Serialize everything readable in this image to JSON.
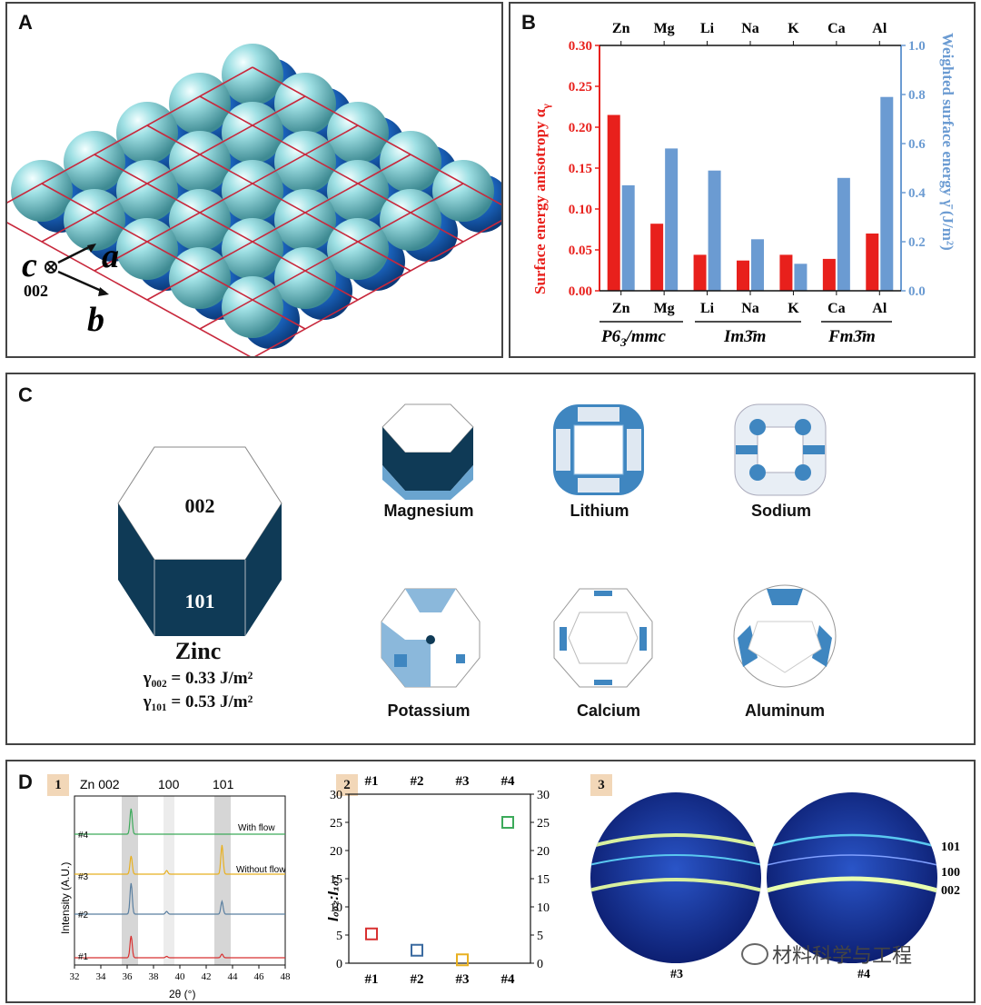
{
  "panels": {
    "a": "A",
    "b": "B",
    "c": "C",
    "d": "D",
    "d_sub": [
      "1",
      "2",
      "3"
    ]
  },
  "panel_a": {
    "axis_c": "c",
    "axis_a": "a",
    "axis_b": "b",
    "axis_c_note": "002"
  },
  "panel_b_chart": {
    "type": "bar",
    "categories": [
      "Zn",
      "Mg",
      "Li",
      "Na",
      "K",
      "Ca",
      "Al"
    ],
    "series": [
      {
        "name": "Surface energy anisotropy α_γ",
        "axis": "left",
        "color": "#e8201c",
        "values": [
          0.215,
          0.082,
          0.044,
          0.037,
          0.044,
          0.039,
          0.07
        ]
      },
      {
        "name": "Weighted surface energy γ̄ (J/m²)",
        "axis": "right",
        "color": "#6b9bd2",
        "values": [
          0.43,
          0.58,
          0.49,
          0.21,
          0.11,
          0.46,
          0.79
        ]
      }
    ],
    "ylim": [
      0,
      0.3
    ],
    "y2lim": [
      0,
      1.0
    ],
    "yticks": [
      "0.00",
      "0.05",
      "0.10",
      "0.15",
      "0.20",
      "0.25",
      "0.30"
    ],
    "y2ticks": [
      "0.0",
      "0.2",
      "0.4",
      "0.6",
      "0.8",
      "1.0"
    ],
    "ylabel": "Surface energy anisotropy α",
    "ylabel_sub": "γ",
    "y2label": "Weighted surface energy γ̄ (J/m²)",
    "groups": [
      {
        "label": "P6",
        "sub": "3",
        "rest": "/mmc"
      },
      {
        "label": "Im3̄m"
      },
      {
        "label": "Fm3̄m"
      }
    ]
  },
  "panel_c": {
    "zinc_face_top": "002",
    "zinc_face_side": "101",
    "zinc_name": "Zinc",
    "gamma_002": "γ₀₀₂ = 0.33 J/m²",
    "gamma_101": "γ₁₀₁ = 0.53 J/m²",
    "metals": [
      "Magnesium",
      "Lithium",
      "Sodium",
      "Potassium",
      "Calcium",
      "Aluminum"
    ]
  },
  "panel_d1": {
    "peaks_labels": [
      "Zn 002",
      "100",
      "101"
    ],
    "traces": [
      "#4",
      "#3",
      "#2",
      "#1"
    ],
    "trace_colors": [
      "#3caa5a",
      "#e8b020",
      "#5a7fa0",
      "#d83030"
    ],
    "notes": [
      "With flow",
      "Without flow"
    ],
    "ylabel": "Intensity (A.U.)",
    "xlabel": "2θ (°)",
    "xticks": [
      "32",
      "34",
      "36",
      "38",
      "40",
      "42",
      "44",
      "46",
      "48"
    ]
  },
  "chart_data": {
    "type": "scatter",
    "x": [
      "#1",
      "#2",
      "#3",
      "#4"
    ],
    "values": [
      5.2,
      2.3,
      0.6,
      25.0
    ],
    "colors": [
      "#d83030",
      "#3a6aa0",
      "#e8b020",
      "#3caa5a"
    ],
    "ylim": [
      0,
      30
    ],
    "yticks": [
      "0",
      "5",
      "10",
      "15",
      "20",
      "25",
      "30"
    ],
    "ylabel": "I₀₀₂:I₁₀₁"
  },
  "panel_d3": {
    "rings": [
      "101",
      "100",
      "002"
    ],
    "captions": [
      "#3",
      "#4"
    ]
  },
  "watermark": "材料科学与工程"
}
